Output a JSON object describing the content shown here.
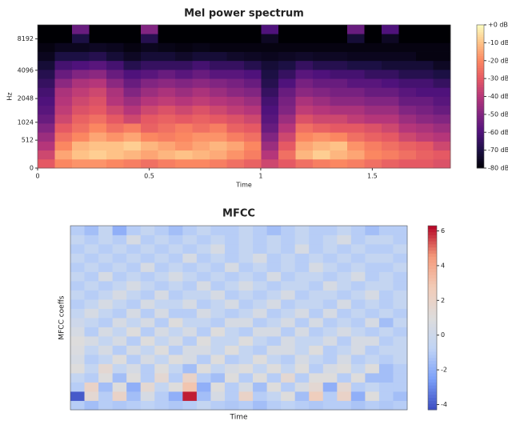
{
  "chart_data": [
    {
      "type": "heatmap",
      "title": "Mel power spectrum",
      "xlabel": "Time",
      "ylabel": "Hz",
      "yscale": "mel",
      "colormap": "magma",
      "xlim": [
        0,
        1.85
      ],
      "xticks": [
        0,
        0.5,
        1,
        1.5
      ],
      "ylim": [
        0,
        11025
      ],
      "yticks": [
        0,
        512,
        1024,
        2048,
        4096,
        8192
      ],
      "zlim": [
        -80,
        0
      ],
      "zticks": [
        {
          "value": 0,
          "label": "+0 dB"
        },
        {
          "value": -10,
          "label": "-10 dB"
        },
        {
          "value": -20,
          "label": "-20 dB"
        },
        {
          "value": -30,
          "label": "-30 dB"
        },
        {
          "value": -40,
          "label": "-40 dB"
        },
        {
          "value": -50,
          "label": "-50 dB"
        },
        {
          "value": -60,
          "label": "-60 dB"
        },
        {
          "value": -70,
          "label": "-70 dB"
        },
        {
          "value": -80,
          "label": "-80 dB"
        }
      ],
      "values": [
        [
          -30,
          -20,
          -18,
          -18,
          -20,
          -22,
          -25,
          -22,
          -20,
          -20,
          -22,
          -25,
          -28,
          -35,
          -30,
          -25,
          -22,
          -20,
          -22,
          -25,
          -28,
          -30,
          -30,
          -32
        ],
        [
          -35,
          -15,
          -10,
          -8,
          -10,
          -12,
          -15,
          -12,
          -10,
          -12,
          -14,
          -18,
          -22,
          -40,
          -25,
          -12,
          -8,
          -12,
          -15,
          -20,
          -22,
          -25,
          -28,
          -30
        ],
        [
          -40,
          -20,
          -12,
          -10,
          -10,
          -8,
          -12,
          -15,
          -18,
          -15,
          -12,
          -15,
          -20,
          -45,
          -30,
          -15,
          -12,
          -10,
          -18,
          -22,
          -25,
          -28,
          -30,
          -35
        ],
        [
          -45,
          -25,
          -20,
          -15,
          -18,
          -15,
          -20,
          -22,
          -20,
          -18,
          -18,
          -22,
          -25,
          -50,
          -35,
          -20,
          -18,
          -20,
          -25,
          -28,
          -30,
          -35,
          -38,
          -40
        ],
        [
          -50,
          -30,
          -25,
          -20,
          -25,
          -22,
          -28,
          -25,
          -22,
          -25,
          -22,
          -28,
          -30,
          -55,
          -40,
          -25,
          -28,
          -30,
          -30,
          -32,
          -35,
          -40,
          -42,
          -45
        ],
        [
          -55,
          -35,
          -28,
          -25,
          -30,
          -35,
          -30,
          -28,
          -30,
          -28,
          -30,
          -32,
          -35,
          -58,
          -45,
          -32,
          -35,
          -35,
          -38,
          -40,
          -40,
          -45,
          -48,
          -50
        ],
        [
          -58,
          -38,
          -32,
          -30,
          -35,
          -40,
          -35,
          -32,
          -35,
          -32,
          -35,
          -38,
          -40,
          -60,
          -50,
          -38,
          -40,
          -42,
          -42,
          -45,
          -45,
          -50,
          -52,
          -55
        ],
        [
          -60,
          -40,
          -35,
          -32,
          -40,
          -45,
          -40,
          -38,
          -40,
          -38,
          -40,
          -42,
          -45,
          -62,
          -52,
          -42,
          -45,
          -48,
          -48,
          -50,
          -50,
          -55,
          -55,
          -58
        ],
        [
          -62,
          -42,
          -38,
          -35,
          -42,
          -50,
          -45,
          -42,
          -45,
          -42,
          -45,
          -48,
          -50,
          -65,
          -55,
          -48,
          -50,
          -52,
          -52,
          -55,
          -55,
          -58,
          -60,
          -60
        ],
        [
          -65,
          -48,
          -42,
          -40,
          -48,
          -55,
          -50,
          -48,
          -50,
          -48,
          -50,
          -52,
          -55,
          -68,
          -60,
          -52,
          -55,
          -55,
          -58,
          -58,
          -60,
          -62,
          -62,
          -65
        ],
        [
          -68,
          -55,
          -50,
          -48,
          -55,
          -60,
          -58,
          -55,
          -58,
          -55,
          -58,
          -58,
          -60,
          -70,
          -65,
          -58,
          -60,
          -62,
          -62,
          -65,
          -65,
          -68,
          -68,
          -70
        ],
        [
          -72,
          -62,
          -60,
          -58,
          -62,
          -68,
          -65,
          -65,
          -65,
          -62,
          -65,
          -65,
          -68,
          -72,
          -70,
          -65,
          -68,
          -68,
          -70,
          -70,
          -72,
          -72,
          -72,
          -75
        ],
        [
          -76,
          -70,
          -70,
          -68,
          -72,
          -75,
          -72,
          -72,
          -74,
          -72,
          -72,
          -74,
          -75,
          -76,
          -75,
          -74,
          -75,
          -75,
          -76,
          -76,
          -76,
          -76,
          -78,
          -78
        ],
        [
          -78,
          -76,
          -76,
          -75,
          -76,
          -78,
          -76,
          -77,
          -78,
          -77,
          -78,
          -78,
          -78,
          -78,
          -78,
          -78,
          -78,
          -78,
          -78,
          -78,
          -78,
          -78,
          -78,
          -78
        ],
        [
          -80,
          -80,
          -70,
          -80,
          -80,
          -80,
          -68,
          -80,
          -80,
          -80,
          -80,
          -80,
          -80,
          -75,
          -80,
          -80,
          -80,
          -80,
          -72,
          -80,
          -75,
          -80,
          -80,
          -80
        ],
        [
          -80,
          -80,
          -55,
          -80,
          -80,
          -80,
          -50,
          -80,
          -80,
          -80,
          -80,
          -80,
          -80,
          -60,
          -80,
          -80,
          -80,
          -80,
          -55,
          -80,
          -60,
          -80,
          -80,
          -80
        ]
      ]
    },
    {
      "type": "heatmap",
      "title": "MFCC",
      "xlabel": "Time",
      "ylabel": "MFCC coeffs",
      "colormap": "coolwarm",
      "zlim": [
        -4.3,
        6.3
      ],
      "zticks": [
        -4,
        -2,
        0,
        2,
        4,
        6
      ],
      "values": [
        [
          -1,
          -1.5,
          -1,
          -1.2,
          -1,
          -0.8,
          -1,
          -1.2,
          -1,
          -0.5,
          -1,
          -1.2,
          -1,
          -1.5,
          -1,
          -0.8,
          -1,
          -1.2,
          -1,
          -1,
          -1.3,
          -1,
          -1.2,
          -1
        ],
        [
          -4,
          1.5,
          -1,
          2,
          -1.5,
          0.5,
          -1,
          -2,
          6,
          -1.5,
          0.5,
          -1,
          2,
          -1,
          -0.5,
          1,
          -1.5,
          2.5,
          -1,
          2,
          -2,
          1,
          -1,
          -1.5
        ],
        [
          -1,
          2,
          -1.5,
          1,
          -2,
          1.5,
          -0.5,
          1,
          3,
          -2,
          1,
          -1,
          0.5,
          -1.5,
          1,
          -1,
          0.5,
          1.5,
          -2,
          1.5,
          -1,
          -0.5,
          -1,
          -1
        ],
        [
          -0.5,
          -1,
          1,
          -1.5,
          1,
          -1,
          1.5,
          -1,
          2,
          -1,
          -1.5,
          1,
          -1,
          1,
          -1,
          1.5,
          -1,
          1,
          1,
          -1,
          1,
          -1.5,
          -1.5,
          -1
        ],
        [
          1,
          -0.5,
          1.5,
          -0.5,
          0.5,
          -1,
          1,
          -0.5,
          -1.5,
          1,
          -0.5,
          0.5,
          1,
          -0.5,
          1,
          -0.5,
          1,
          -1,
          0.5,
          1,
          -0.5,
          1,
          -1.5,
          -1
        ],
        [
          0.5,
          -1,
          -0.5,
          1,
          -1,
          0.5,
          -0.5,
          1,
          0.5,
          -1,
          1,
          -1,
          -0.5,
          1,
          -0.5,
          -1,
          0.5,
          -0.5,
          -1,
          0.5,
          -1,
          -0.5,
          -1,
          -0.5
        ],
        [
          0.8,
          -0.5,
          0.5,
          -1,
          0.5,
          -0.5,
          1,
          -1,
          0.5,
          0.5,
          -0.5,
          1,
          -0.5,
          -1,
          0.5,
          0.5,
          -0.5,
          1,
          -1,
          -0.5,
          0.5,
          -1,
          -0.5,
          -0.5
        ],
        [
          1,
          0.5,
          -0.5,
          0.5,
          -1,
          1,
          -0.5,
          0.5,
          -1,
          1,
          -0.5,
          -0.5,
          1,
          -0.5,
          -1,
          0.5,
          -0.5,
          -0.5,
          0.5,
          -1,
          0.5,
          0.5,
          -1,
          -0.5
        ],
        [
          0.5,
          -1,
          0.5,
          -0.5,
          1,
          -1,
          0.5,
          -0.5,
          0.5,
          -1,
          1,
          -0.5,
          -1,
          0.5,
          0.5,
          -1,
          0.5,
          -1,
          -0.5,
          0.5,
          -0.5,
          -1,
          -0.5,
          -1
        ],
        [
          0,
          -0.5,
          -1,
          0.5,
          -0.5,
          0.5,
          -1,
          1,
          -0.5,
          -0.5,
          -1,
          0.5,
          0.5,
          -1,
          -0.5,
          0.5,
          -1,
          0.5,
          -1,
          -0.5,
          -1,
          0.5,
          -1.5,
          -0.5
        ],
        [
          -0.5,
          0.5,
          -0.5,
          -1,
          0.5,
          -1,
          0.5,
          -1,
          -1,
          0.5,
          -0.5,
          -1,
          -0.5,
          0.5,
          -1,
          -0.5,
          0.5,
          -1,
          0.5,
          -1,
          -0.5,
          -1,
          -0.5,
          -1
        ],
        [
          -1,
          -0.5,
          0.5,
          -0.5,
          -1,
          0.5,
          -0.5,
          -0.5,
          0.5,
          -1,
          -0.5,
          0.5,
          -1,
          -0.5,
          0.5,
          -1,
          -0.5,
          -0.5,
          -1,
          0.5,
          -1,
          -0.5,
          -1,
          -0.5
        ],
        [
          -0.5,
          -1,
          -0.5,
          0.5,
          -0.5,
          -1,
          0.5,
          -1,
          -0.5,
          -0.5,
          0.5,
          -1,
          -0.5,
          -1,
          -0.5,
          0.5,
          -1,
          -0.5,
          -0.5,
          -1,
          -0.5,
          0.5,
          -1,
          -0.5
        ],
        [
          -1,
          -0.5,
          -1,
          -0.5,
          0.5,
          -0.5,
          -1,
          -0.5,
          -1,
          0.5,
          -1,
          -0.5,
          0.5,
          -0.5,
          -1,
          -0.5,
          -0.5,
          -1,
          0.5,
          -0.5,
          -1,
          -0.5,
          -0.5,
          -1
        ],
        [
          -0.5,
          -1,
          0.5,
          -1,
          -0.5,
          -1,
          -0.5,
          0.5,
          -0.5,
          -1,
          -0.5,
          -1,
          -0.5,
          -1,
          0.5,
          -1,
          -0.5,
          -0.5,
          -1,
          -0.5,
          0.5,
          -1,
          -0.5,
          -1
        ],
        [
          -1,
          -0.5,
          -1,
          -0.5,
          -1,
          0.5,
          -1,
          -0.5,
          -1,
          -0.5,
          -1,
          0.5,
          -1,
          -0.5,
          -1,
          -0.5,
          -1,
          0.5,
          -0.5,
          -1,
          -0.5,
          -1,
          -1,
          -0.5
        ],
        [
          -0.5,
          -1,
          -0.5,
          -1,
          -0.5,
          -1,
          -0.5,
          -1,
          0.5,
          -1,
          -0.5,
          -1,
          -0.5,
          0.5,
          -1,
          -0.5,
          -1,
          -0.5,
          -1,
          -0.5,
          -1,
          -0.5,
          -0.5,
          -1
        ],
        [
          -1,
          -0.5,
          -1,
          -0.5,
          -1,
          -0.5,
          -1,
          -0.5,
          -1,
          -0.5,
          0.5,
          -1,
          -0.5,
          -1,
          -0.5,
          -1,
          0.5,
          -1,
          -0.5,
          -1,
          -0.5,
          -1,
          -1,
          -0.5
        ],
        [
          -0.5,
          -1,
          -0.5,
          -1,
          0.5,
          -1,
          -0.5,
          -1,
          -0.5,
          -1,
          -0.5,
          -1,
          -0.5,
          -1,
          -0.5,
          -1,
          -0.5,
          -1,
          -0.5,
          0.5,
          -1,
          -0.5,
          -0.5,
          -1
        ],
        [
          -1,
          -1.5,
          -0.5,
          -2,
          -1,
          -0.5,
          -1,
          -1.5,
          -1,
          -0.5,
          -1,
          -1,
          -0.5,
          -1,
          -1.5,
          -1,
          -0.5,
          -1,
          -1,
          -0.5,
          -1,
          -1.5,
          -1,
          -1
        ]
      ]
    }
  ]
}
